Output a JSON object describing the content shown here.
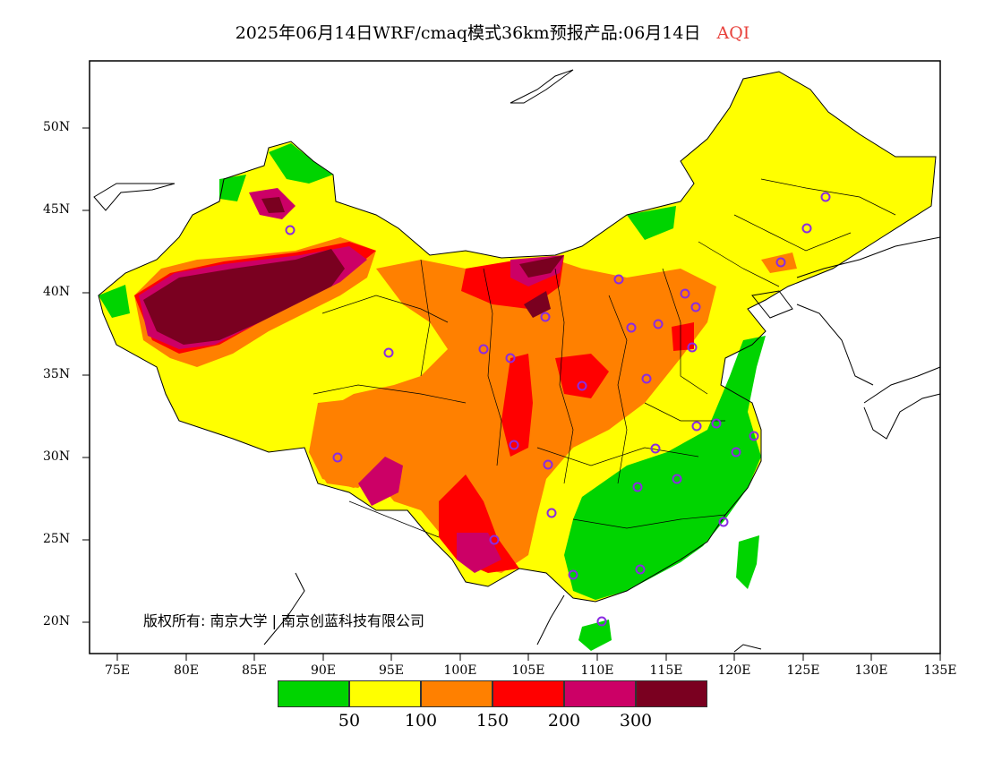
{
  "title": {
    "main": "2025年06月14日WRF/cmaq模式36km预报产品:06月14日",
    "variable": "AQI"
  },
  "axes": {
    "lat_labels": [
      "50N",
      "45N",
      "40N",
      "35N",
      "30N",
      "25N",
      "20N"
    ],
    "lon_labels": [
      "75E",
      "80E",
      "85E",
      "90E",
      "95E",
      "100E",
      "105E",
      "110E",
      "115E",
      "120E",
      "125E",
      "130E",
      "135E"
    ]
  },
  "legend": {
    "colors": [
      "#00d400",
      "#ffff00",
      "#ff8000",
      "#ff0000",
      "#cc0066",
      "#7a0020"
    ],
    "breaks": [
      "50",
      "100",
      "150",
      "200",
      "300"
    ]
  },
  "copyright": "版权所有: 南京大学 | 南京创蓝科技有限公司",
  "colors": {
    "good": "#00d400",
    "moderate": "#ffff00",
    "unhealthy_sensitive": "#ff8000",
    "unhealthy": "#ff0000",
    "very_unhealthy": "#cc0066",
    "hazardous": "#7a0020",
    "station_marker": "#8a2be2"
  }
}
